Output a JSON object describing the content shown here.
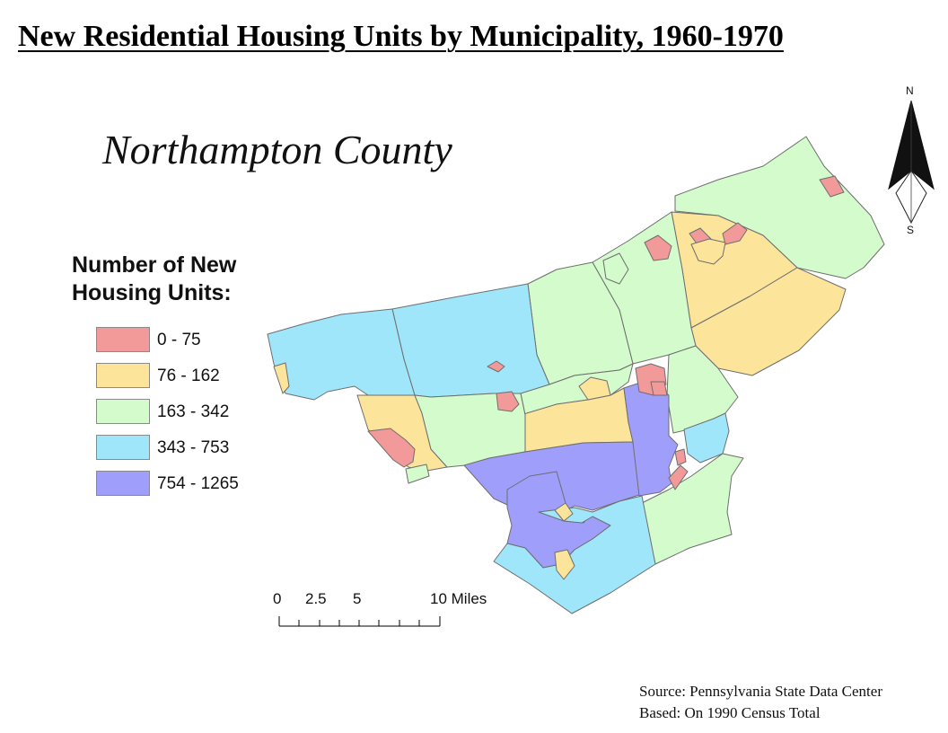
{
  "title": "New Residential Housing Units by Municipality, 1960-1970",
  "county_name": "Northampton County",
  "legend": {
    "title_line1": "Number of New",
    "title_line2": "Housing Units:",
    "classes": [
      {
        "label": "0 - 75",
        "color": "#f29999"
      },
      {
        "label": "76 - 162",
        "color": "#fce49b"
      },
      {
        "label": "163 - 342",
        "color": "#d3fbcc"
      },
      {
        "label": "343 - 753",
        "color": "#a0e6fb"
      },
      {
        "label": "754 - 1265",
        "color": "#9f9efb"
      }
    ]
  },
  "scale_bar": {
    "labels": [
      "0",
      "2.5",
      "5",
      "10 Miles"
    ]
  },
  "north_arrow": {
    "north_label": "N",
    "south_label": "S"
  },
  "source": {
    "line1": "Source: Pennsylvania State Data Center",
    "line2": "Based: On 1990 Census Total"
  },
  "map": {
    "border_color": "#6e6e6e"
  }
}
